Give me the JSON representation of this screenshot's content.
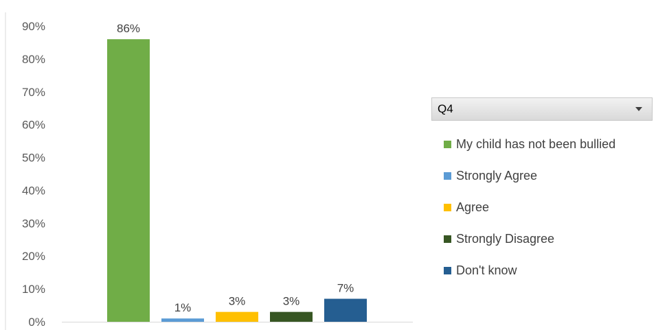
{
  "chart_data": {
    "type": "bar",
    "categories": [
      "My child has not been bullied",
      "Strongly Agree",
      "Agree",
      "Strongly Disagree",
      "Don't know"
    ],
    "values": [
      86,
      1,
      3,
      3,
      7
    ],
    "data_labels": [
      "86%",
      "1%",
      "3%",
      "3%",
      "7%"
    ],
    "colors": [
      "#70ad47",
      "#5b9bd5",
      "#ffc000",
      "#375623",
      "#255e91"
    ],
    "yticks": [
      "0%",
      "10%",
      "20%",
      "30%",
      "40%",
      "50%",
      "60%",
      "70%",
      "80%",
      "90%"
    ],
    "ylim": [
      0,
      90
    ],
    "grid": false,
    "legend_position": "right",
    "legend_title": "Q4"
  }
}
